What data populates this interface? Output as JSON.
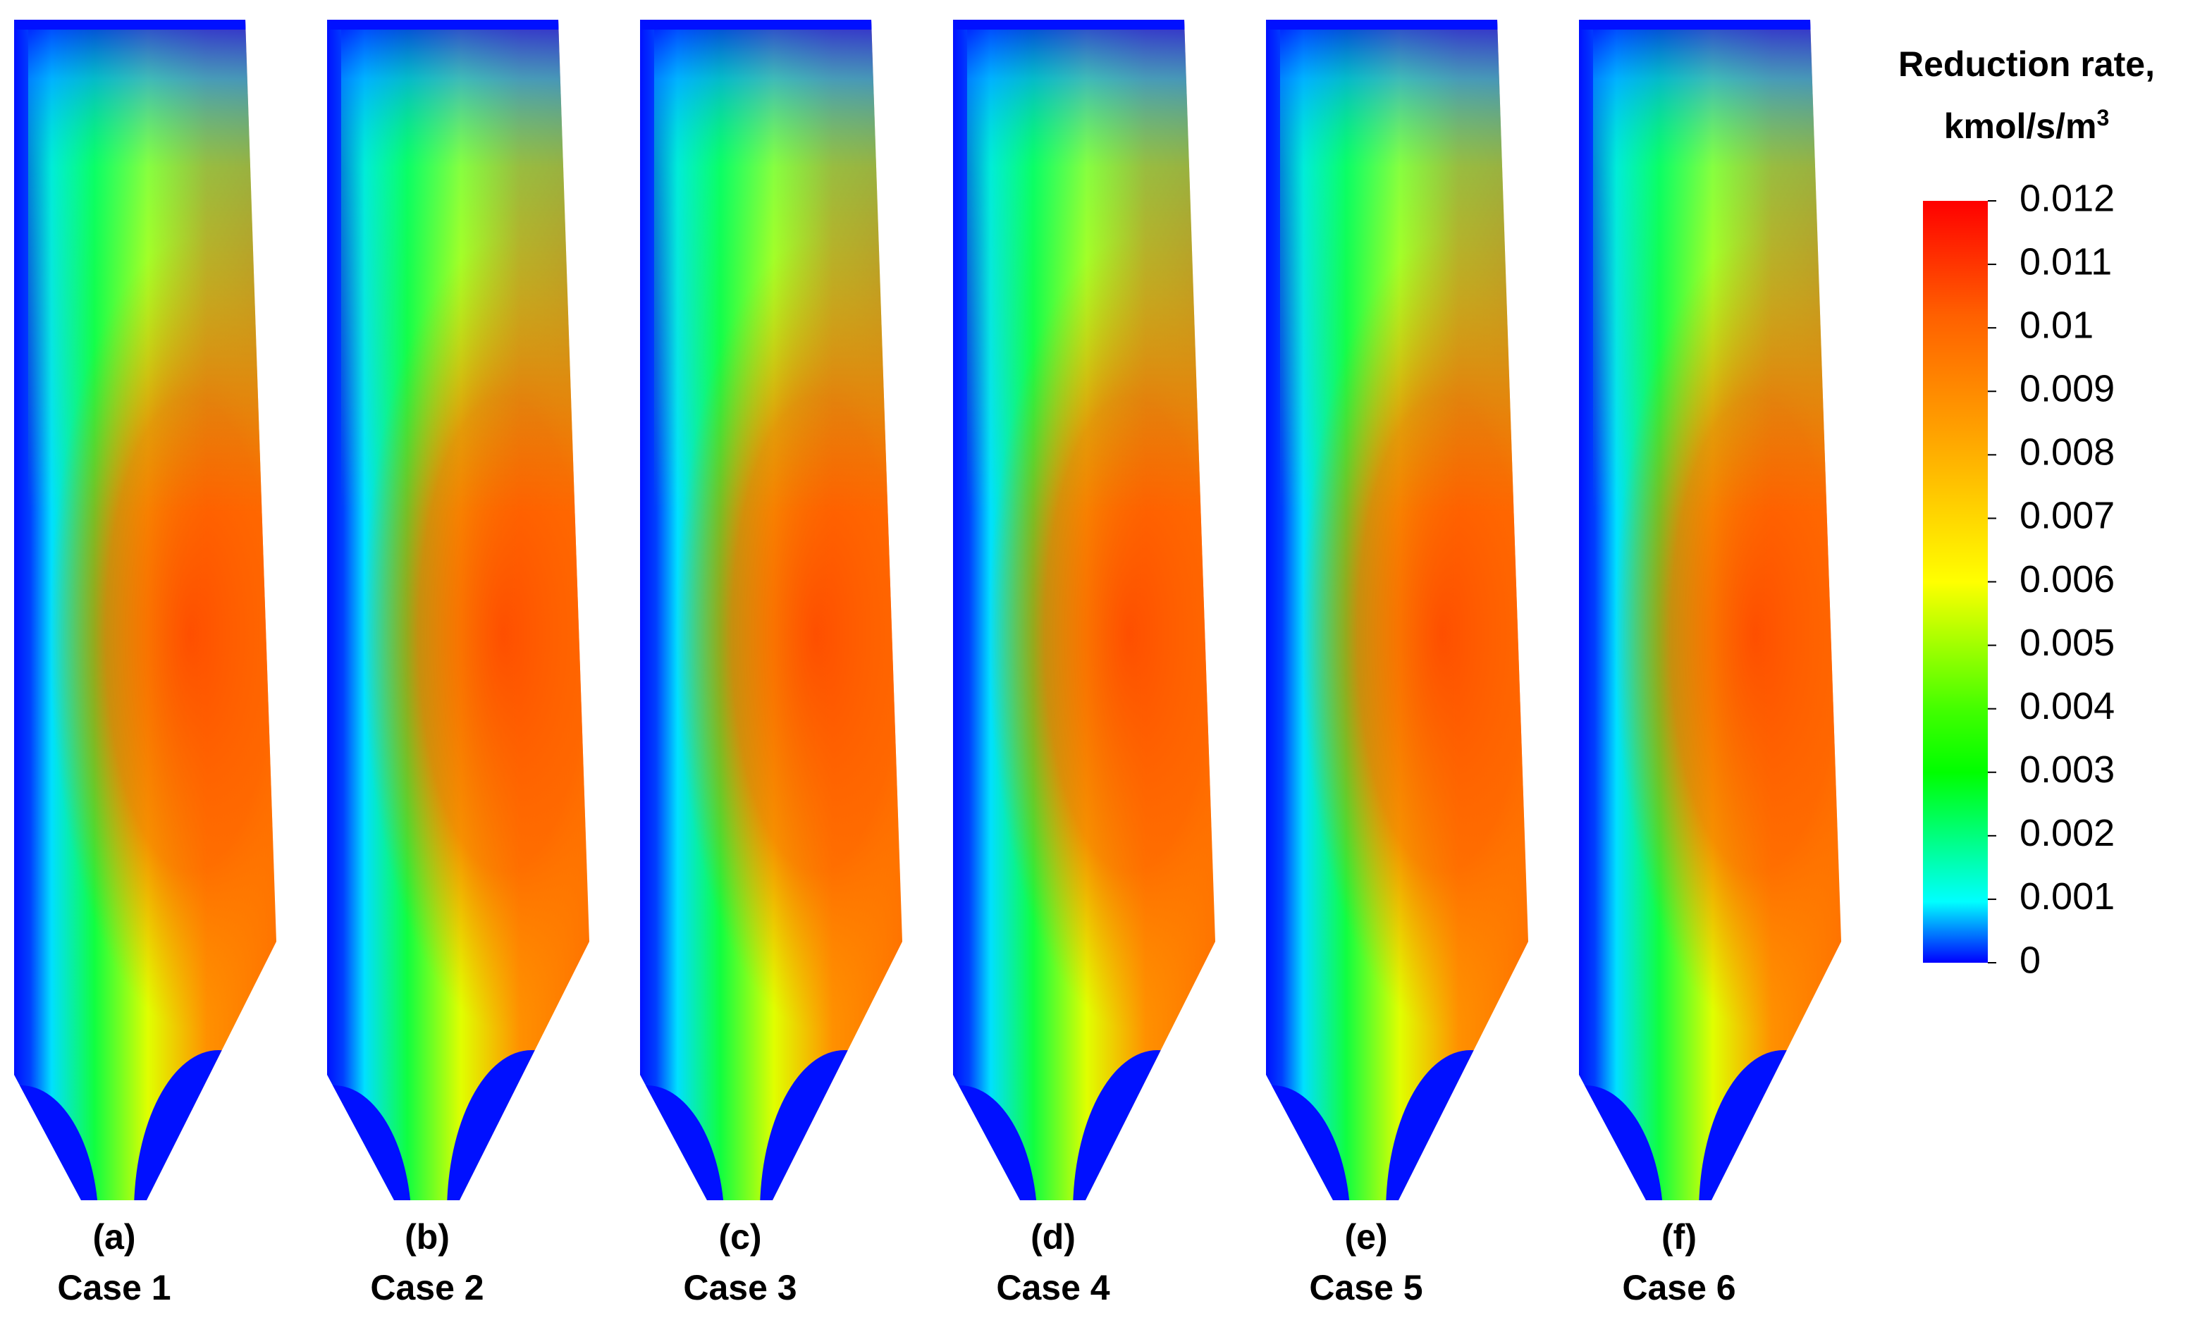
{
  "panels": [
    {
      "label": "(a)",
      "case": "Case 1"
    },
    {
      "label": "(b)",
      "case": "Case 2"
    },
    {
      "label": "(c)",
      "case": "Case 3"
    },
    {
      "label": "(d)",
      "case": "Case 4"
    },
    {
      "label": "(e)",
      "case": "Case 5"
    },
    {
      "label": "(f)",
      "case": "Case 6"
    }
  ],
  "colorbar": {
    "title": [
      "Reduction rate,",
      "kmol/s/m"
    ],
    "title_sup": "3",
    "ticks": [
      0.012,
      0.011,
      0.01,
      0.009,
      0.008,
      0.007,
      0.006,
      0.005,
      0.004,
      0.003,
      0.002,
      0.001,
      0
    ]
  }
}
